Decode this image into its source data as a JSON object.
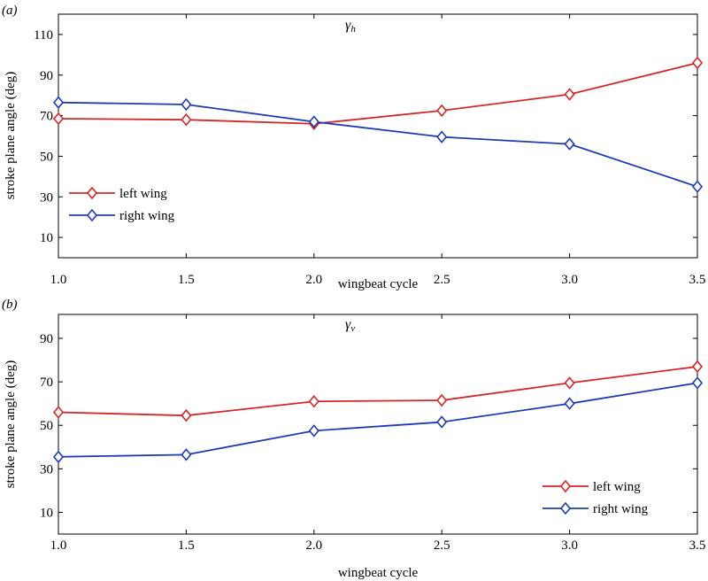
{
  "chart_data": [
    {
      "panel_label": "(a)",
      "type": "line",
      "title": "γh",
      "xlabel": "wingbeat cycle",
      "ylabel": "stroke plane angle (deg)",
      "x": [
        1.0,
        1.5,
        2.0,
        2.5,
        3.0,
        3.5
      ],
      "x_tick_labels": [
        "1.0",
        "1.5",
        "2.0",
        "2.5",
        "3.0",
        "3.5"
      ],
      "y_ticks": [
        10,
        30,
        50,
        70,
        90,
        110
      ],
      "xlim": [
        1.0,
        3.5
      ],
      "ylim": [
        0,
        120
      ],
      "grid": false,
      "legend_position": "lower-left",
      "series": [
        {
          "name": "left wing",
          "color": "#d42626",
          "values": [
            68.5,
            68,
            66,
            72.5,
            80.5,
            96
          ]
        },
        {
          "name": "right wing",
          "color": "#1f3bb3",
          "values": [
            76.5,
            75.5,
            67,
            59.5,
            56,
            35
          ]
        }
      ]
    },
    {
      "panel_label": "(b)",
      "type": "line",
      "title": "γv",
      "xlabel": "wingbeat cycle",
      "ylabel": "stroke plane angle (deg)",
      "x": [
        1.0,
        1.5,
        2.0,
        2.5,
        3.0,
        3.5
      ],
      "x_tick_labels": [
        "1.0",
        "1.5",
        "2.0",
        "2.5",
        "3.0",
        "3.5"
      ],
      "y_ticks": [
        10,
        30,
        50,
        70,
        90
      ],
      "xlim": [
        1.0,
        3.5
      ],
      "ylim": [
        0,
        101
      ],
      "grid": false,
      "legend_position": "lower-right",
      "series": [
        {
          "name": "left wing",
          "color": "#d42626",
          "values": [
            56,
            54.5,
            61,
            61.5,
            69.5,
            77
          ]
        },
        {
          "name": "right wing",
          "color": "#1f3bb3",
          "values": [
            35.5,
            36.5,
            47.5,
            51.5,
            60,
            69.5
          ]
        }
      ]
    }
  ]
}
